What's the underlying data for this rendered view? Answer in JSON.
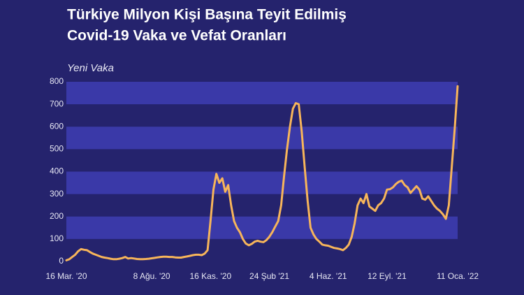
{
  "chart_data": {
    "type": "line",
    "title": [
      "Türkiye Milyon Kişi Başına Teyit Edilmiş",
      "Covid-19 Vaka ve Vefat Oranları"
    ],
    "y_label": "Yeni Vaka",
    "categories": [
      "16 Mar. '20",
      null,
      null,
      null,
      null,
      null,
      null,
      null,
      null,
      null,
      null,
      null,
      null,
      null,
      null,
      null,
      null,
      null,
      null,
      null,
      null,
      null,
      null,
      null,
      null,
      null,
      null,
      null,
      null,
      "8 Ağu. '20",
      null,
      null,
      null,
      null,
      null,
      null,
      null,
      null,
      null,
      null,
      null,
      null,
      null,
      null,
      null,
      null,
      null,
      null,
      null,
      "16 Kas. '20",
      null,
      null,
      null,
      null,
      null,
      null,
      null,
      null,
      null,
      null,
      null,
      null,
      null,
      null,
      null,
      null,
      null,
      null,
      null,
      "24 Şub '21",
      null,
      null,
      null,
      null,
      null,
      null,
      null,
      null,
      null,
      null,
      null,
      null,
      null,
      null,
      null,
      null,
      null,
      null,
      null,
      "4 Haz. '21",
      null,
      null,
      null,
      null,
      null,
      null,
      null,
      null,
      null,
      null,
      null,
      null,
      null,
      null,
      null,
      null,
      null,
      null,
      null,
      "12 Eyl. '21",
      null,
      null,
      null,
      null,
      null,
      null,
      null,
      null,
      null,
      null,
      null,
      null,
      null,
      null,
      null,
      null,
      null,
      null,
      null,
      null,
      null,
      null,
      null,
      "11 Oca. '22"
    ],
    "values": [
      5,
      10,
      20,
      30,
      45,
      55,
      52,
      50,
      42,
      35,
      30,
      25,
      20,
      17,
      15,
      12,
      10,
      10,
      12,
      15,
      20,
      13,
      15,
      13,
      11,
      10,
      10,
      11,
      12,
      14,
      16,
      18,
      20,
      21,
      21,
      20,
      20,
      18,
      17,
      17,
      20,
      22,
      25,
      28,
      30,
      30,
      28,
      35,
      50,
      180,
      320,
      390,
      350,
      370,
      310,
      340,
      250,
      180,
      150,
      130,
      100,
      80,
      72,
      78,
      88,
      92,
      88,
      86,
      95,
      110,
      130,
      155,
      180,
      250,
      380,
      500,
      600,
      680,
      705,
      700,
      580,
      420,
      270,
      150,
      120,
      100,
      88,
      75,
      72,
      70,
      65,
      60,
      58,
      55,
      50,
      60,
      75,
      110,
      170,
      250,
      280,
      260,
      300,
      245,
      235,
      225,
      250,
      260,
      280,
      320,
      322,
      330,
      345,
      355,
      360,
      340,
      330,
      305,
      320,
      335,
      320,
      280,
      275,
      290,
      270,
      250,
      235,
      225,
      210,
      190,
      250,
      420,
      590,
      780
    ],
    "color": "#f7b55a",
    "ylim": [
      0,
      800
    ],
    "yticks": [
      0,
      100,
      200,
      300,
      400,
      500,
      600,
      700,
      800
    ],
    "bands": true
  }
}
